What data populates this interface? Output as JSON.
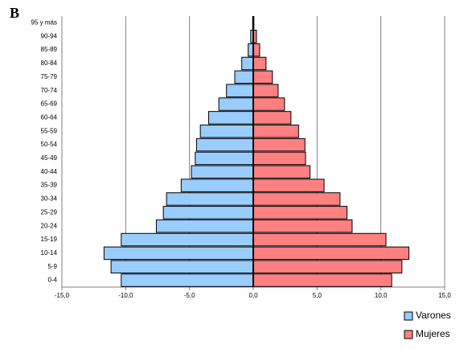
{
  "chart_data": {
    "type": "pyramid",
    "panel_label": "B",
    "categories": [
      "95 y más",
      "90-94",
      "85-89",
      "80-84",
      "75-79",
      "70-74",
      "65-69",
      "60-64",
      "55-59",
      "50-54",
      "45-49",
      "40-44",
      "35-39",
      "30-34",
      "25-29",
      "20-24",
      "15-19",
      "10-14",
      "5-9",
      "0-4"
    ],
    "series": [
      {
        "name": "Varones",
        "color": "#99ccff",
        "values": [
          -0.05,
          -0.2,
          -0.4,
          -0.9,
          -1.45,
          -2.1,
          -2.7,
          -3.5,
          -4.15,
          -4.45,
          -4.55,
          -4.85,
          -5.65,
          -6.8,
          -7.05,
          -7.6,
          -10.35,
          -11.7,
          -11.15,
          -10.35
        ]
      },
      {
        "name": "Mujeres",
        "color": "#ff8080",
        "values": [
          0.05,
          0.25,
          0.5,
          1.0,
          1.5,
          1.95,
          2.45,
          2.95,
          3.55,
          4.05,
          4.1,
          4.45,
          5.55,
          6.8,
          7.35,
          7.75,
          10.4,
          12.2,
          11.65,
          10.85
        ]
      }
    ],
    "xlim": [
      -15,
      15
    ],
    "xticks": [
      {
        "value": -15,
        "label": "-15,0"
      },
      {
        "value": -10,
        "label": "-10,0"
      },
      {
        "value": -5,
        "label": "-5,0"
      },
      {
        "value": 0,
        "label": "0,0"
      },
      {
        "value": 5,
        "label": "5,0"
      },
      {
        "value": 10,
        "label": "10,0"
      },
      {
        "value": 15,
        "label": "15,0"
      }
    ],
    "grid": true
  }
}
